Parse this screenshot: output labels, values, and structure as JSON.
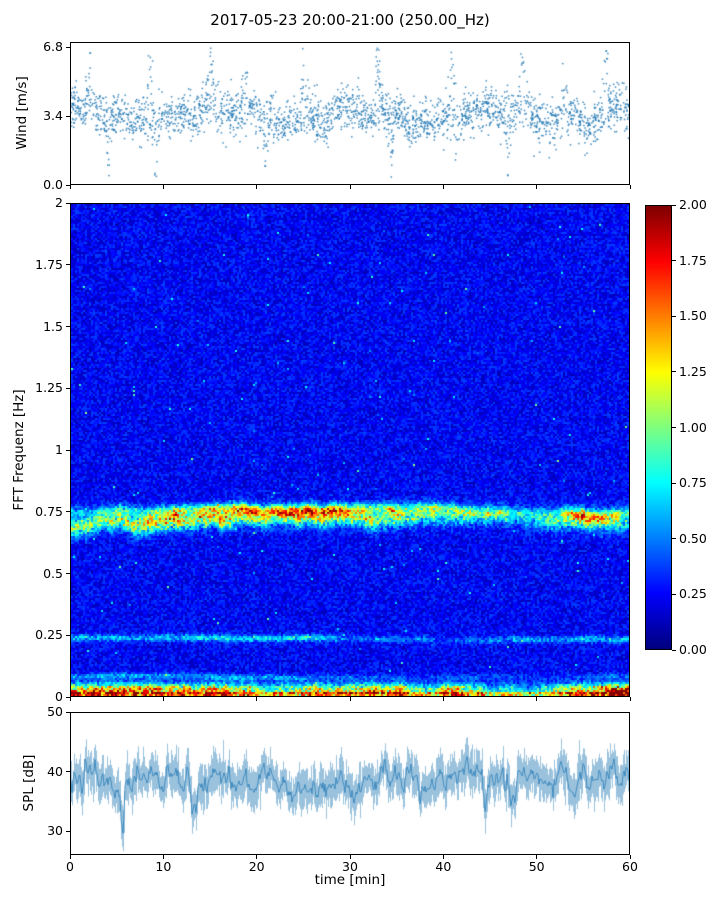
{
  "figure": {
    "title": "2017-05-23 20:00-21:00 (250.00_Hz)",
    "background": "#ffffff"
  },
  "chart_data": [
    {
      "type": "scatter",
      "id": "wind",
      "ylabel": "Wind [m/s]",
      "xlabel": "",
      "xlim": [
        0,
        60
      ],
      "ylim": [
        0.0,
        7.05
      ],
      "yticks": [
        0.0,
        3.4,
        6.8
      ],
      "ytick_labels": [
        "0.0",
        "3.4",
        "6.8"
      ],
      "marker_color": "#1f77b4",
      "n_points": 2600,
      "mean": 3.4,
      "std": 0.55,
      "gust_times": [
        2,
        8.5,
        15,
        18.7,
        25,
        33,
        41,
        48.5,
        53,
        57.5
      ],
      "gust_peak": 6.8,
      "lull_times": [
        4,
        9.2,
        21,
        34.5,
        47
      ],
      "lull_min": 0.5,
      "description": "Wind speed scatter vs time, mean ~3.4 m/s, gusts up to 6.8 m/s, lulls down to ~0.5 m/s"
    },
    {
      "type": "heatmap",
      "id": "spectrogram",
      "ylabel": "FFT Frequenz [Hz]",
      "xlim": [
        0,
        60
      ],
      "ylim": [
        0,
        2
      ],
      "yticks": [
        0,
        0.25,
        0.5,
        0.75,
        1,
        1.25,
        1.5,
        1.75,
        2
      ],
      "ytick_labels": [
        "0",
        "0.25",
        "0.5",
        "0.75",
        "1",
        "1.25",
        "1.5",
        "1.75",
        "2"
      ],
      "colormap": "jet",
      "background_level": 0.22,
      "bands": [
        {
          "center_hz": 0.68,
          "width_hz": 0.04,
          "mean_intensity": 0.9,
          "wander_hz": 0.06,
          "note": "strong meandering band, cyan/green/yellow with orange bursts"
        },
        {
          "center_hz": 0.75,
          "width_hz": 0.02,
          "mean_intensity": 0.45,
          "wander_hz": 0.03,
          "note": "secondary thin band just above main band"
        },
        {
          "center_hz": 0.235,
          "width_hz": 0.014,
          "mean_intensity": 0.38,
          "wander_hz": 0.008,
          "note": "thin intermittent cyan line"
        },
        {
          "center_hz": 0.08,
          "width_hz": 0.012,
          "mean_intensity": 0.22,
          "wander_hz": 0.006,
          "note": "faint low-frequency line"
        },
        {
          "center_hz": 0.02,
          "width_hz": 0.03,
          "mean_intensity": 1.1,
          "wander_hz": 0.0,
          "note": "strong bottom-edge band, green/yellow/red speckles"
        }
      ],
      "colorbar": {
        "vmin": 0.0,
        "vmax": 2.0,
        "ticks": [
          0,
          0.25,
          0.5,
          0.75,
          1,
          1.25,
          1.5,
          1.75,
          2
        ],
        "tick_labels": [
          "0.00",
          "0.25",
          "0.50",
          "0.75",
          "1.00",
          "1.25",
          "1.50",
          "1.75",
          "2.00"
        ]
      }
    },
    {
      "type": "line",
      "id": "spl",
      "ylabel": "SPL [dB]",
      "xlabel": "time [min]",
      "xlim": [
        0,
        60
      ],
      "ylim": [
        26,
        50
      ],
      "yticks": [
        30,
        40,
        50
      ],
      "ytick_labels": [
        "30",
        "40",
        "50"
      ],
      "xticks": [
        0,
        10,
        20,
        30,
        40,
        50,
        60
      ],
      "xtick_labels": [
        "0",
        "10",
        "20",
        "30",
        "40",
        "50",
        "60"
      ],
      "line_color": "#1f77b4",
      "mean_db": 38.5,
      "band_halfwidth_db": 3.2,
      "max_db": 48,
      "dips": [
        {
          "time_min": 5.5,
          "min_db": 27
        },
        {
          "time_min": 13,
          "min_db": 31.5
        },
        {
          "time_min": 44.5,
          "min_db": 32
        }
      ],
      "description": "Dense noisy SPL trace, mostly 33-46 dB, deep dip to ~27 dB near minute 5.5"
    }
  ]
}
